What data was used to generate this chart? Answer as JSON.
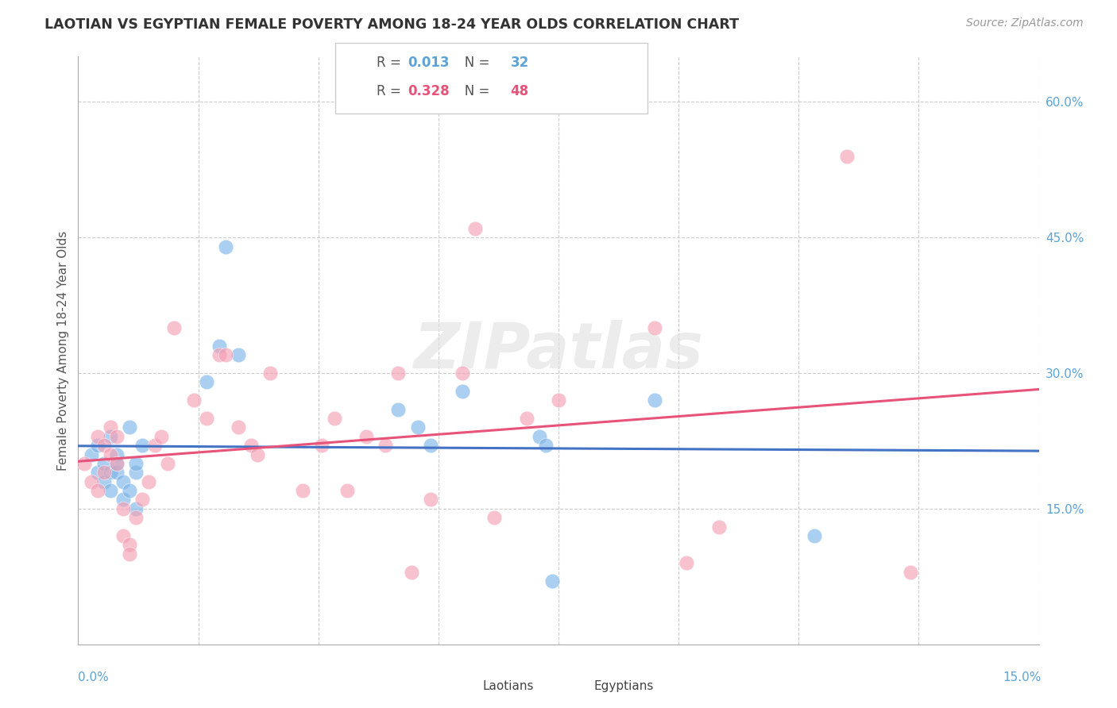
{
  "title": "LAOTIAN VS EGYPTIAN FEMALE POVERTY AMONG 18-24 YEAR OLDS CORRELATION CHART",
  "source": "Source: ZipAtlas.com",
  "ylabel": "Female Poverty Among 18-24 Year Olds",
  "watermark": "ZIPatlas",
  "xlim": [
    0.0,
    0.15
  ],
  "ylim": [
    0.0,
    0.65
  ],
  "ytick_positions": [
    0.15,
    0.3,
    0.45,
    0.6
  ],
  "ytick_labels": [
    "15.0%",
    "30.0%",
    "45.0%",
    "60.0%"
  ],
  "grid_color": "#cccccc",
  "background_color": "#ffffff",
  "laotian_color": "#7eb6e8",
  "egyptian_color": "#f4a0b5",
  "laotian_r": "0.013",
  "laotian_n": "32",
  "egyptian_r": "0.328",
  "egyptian_n": "48",
  "laotian_line_color": "#4472c4",
  "egyptian_line_color": "#e8537a",
  "value_color_blue": "#5ba3d9",
  "value_color_pink": "#e8537a",
  "laotian_x": [
    0.002,
    0.003,
    0.003,
    0.004,
    0.004,
    0.005,
    0.005,
    0.005,
    0.006,
    0.006,
    0.006,
    0.007,
    0.007,
    0.008,
    0.008,
    0.009,
    0.009,
    0.009,
    0.01,
    0.02,
    0.022,
    0.023,
    0.025,
    0.05,
    0.053,
    0.055,
    0.06,
    0.072,
    0.073,
    0.074,
    0.09,
    0.115
  ],
  "laotian_y": [
    0.21,
    0.19,
    0.22,
    0.2,
    0.18,
    0.23,
    0.19,
    0.17,
    0.21,
    0.19,
    0.2,
    0.18,
    0.16,
    0.24,
    0.17,
    0.19,
    0.2,
    0.15,
    0.22,
    0.29,
    0.33,
    0.44,
    0.32,
    0.26,
    0.24,
    0.22,
    0.28,
    0.23,
    0.22,
    0.07,
    0.27,
    0.12
  ],
  "egyptian_x": [
    0.001,
    0.002,
    0.003,
    0.003,
    0.004,
    0.004,
    0.005,
    0.005,
    0.006,
    0.006,
    0.007,
    0.007,
    0.008,
    0.008,
    0.009,
    0.01,
    0.011,
    0.012,
    0.013,
    0.014,
    0.015,
    0.018,
    0.02,
    0.022,
    0.023,
    0.025,
    0.027,
    0.028,
    0.03,
    0.035,
    0.038,
    0.04,
    0.042,
    0.045,
    0.048,
    0.05,
    0.052,
    0.055,
    0.06,
    0.062,
    0.065,
    0.07,
    0.075,
    0.09,
    0.095,
    0.1,
    0.12,
    0.13
  ],
  "egyptian_y": [
    0.2,
    0.18,
    0.23,
    0.17,
    0.22,
    0.19,
    0.21,
    0.24,
    0.23,
    0.2,
    0.15,
    0.12,
    0.11,
    0.1,
    0.14,
    0.16,
    0.18,
    0.22,
    0.23,
    0.2,
    0.35,
    0.27,
    0.25,
    0.32,
    0.32,
    0.24,
    0.22,
    0.21,
    0.3,
    0.17,
    0.22,
    0.25,
    0.17,
    0.23,
    0.22,
    0.3,
    0.08,
    0.16,
    0.3,
    0.46,
    0.14,
    0.25,
    0.27,
    0.35,
    0.09,
    0.13,
    0.54,
    0.08
  ]
}
